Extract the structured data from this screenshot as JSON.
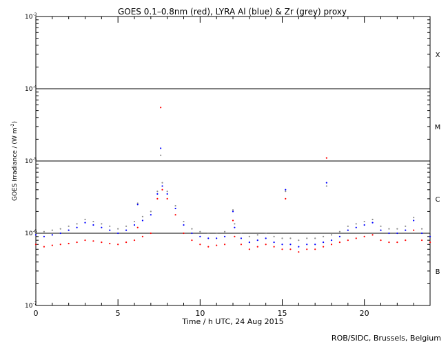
{
  "chart_data": {
    "type": "scatter",
    "title": "GOES 0.1–0.8nm (red), LYRA Al (blue) & Zr (grey) proxy",
    "xlabel": "Time / h UTC, 24 Aug 2015",
    "ylabel_text": "GOES Irradiance / (W m",
    "ylabel_sup": "-2",
    "ylabel_close": ")",
    "xlim": [
      0,
      24
    ],
    "ylim": [
      1e-07,
      0.001
    ],
    "yscale": "log",
    "x_ticks": [
      "0",
      "5",
      "10",
      "15",
      "20"
    ],
    "x_tick_values": [
      0,
      5,
      10,
      15,
      20
    ],
    "y_tick_values": [
      1e-07,
      1e-06,
      1e-05,
      0.0001,
      0.001
    ],
    "y_tick_labels": [
      {
        "base": "10",
        "exp": "-7"
      },
      {
        "base": "10",
        "exp": "-6"
      },
      {
        "base": "10",
        "exp": "-5"
      },
      {
        "base": "10",
        "exp": "-4"
      },
      {
        "base": "10",
        "exp": "-3"
      }
    ],
    "class_lines": [
      1e-06,
      1e-05,
      0.0001
    ],
    "class_labels": [
      {
        "label": "X",
        "value": 0.0003
      },
      {
        "label": "M",
        "value": 3e-05
      },
      {
        "label": "C",
        "value": 3e-06
      },
      {
        "label": "B",
        "value": 3e-07
      }
    ],
    "series": [
      {
        "name": "GOES 0.1–0.8nm",
        "color": "#ff0000",
        "x": [
          0,
          0.5,
          1,
          1.5,
          2,
          2.5,
          3,
          3.5,
          4,
          4.5,
          5,
          5.5,
          6,
          6.2,
          6.5,
          7,
          7.4,
          7.6,
          7.7,
          8,
          8.5,
          9,
          9.5,
          10,
          10.5,
          11,
          11.5,
          12,
          12.1,
          12.5,
          13,
          13.5,
          14,
          14.5,
          15,
          15.2,
          15.5,
          16,
          16.5,
          17,
          17.5,
          17.7,
          18,
          18.5,
          19,
          19.5,
          20,
          20.5,
          21,
          21.5,
          22,
          22.5,
          23,
          23.5,
          24
        ],
        "y": [
          7e-07,
          6.5e-07,
          6.8e-07,
          7e-07,
          7.2e-07,
          7.5e-07,
          8e-07,
          7.8e-07,
          7.5e-07,
          7.2e-07,
          7e-07,
          7.5e-07,
          8e-07,
          1.2e-06,
          9e-07,
          1e-06,
          3e-06,
          5.5e-05,
          4e-06,
          3e-06,
          1.8e-06,
          1e-06,
          8e-07,
          7e-07,
          6.5e-07,
          6.8e-07,
          7e-07,
          1.5e-06,
          9e-07,
          7e-07,
          6e-07,
          6.5e-07,
          7e-07,
          6.5e-07,
          6e-07,
          3e-06,
          6e-07,
          5.5e-07,
          6e-07,
          6e-07,
          6.5e-07,
          1.1e-05,
          7e-07,
          7.5e-07,
          8e-07,
          8.5e-07,
          9e-07,
          9.5e-07,
          8e-07,
          7.5e-07,
          7.5e-07,
          8e-07,
          1.1e-06,
          8e-07,
          7.5e-07
        ]
      },
      {
        "name": "LYRA Al",
        "color": "#0000ff",
        "x": [
          0,
          0.5,
          1,
          1.5,
          2,
          2.5,
          3,
          3.5,
          4,
          4.5,
          5,
          5.5,
          6,
          6.2,
          6.5,
          7,
          7.4,
          7.6,
          7.7,
          8,
          8.5,
          9,
          9.5,
          10,
          10.5,
          11,
          11.5,
          12,
          12.1,
          12.5,
          13,
          13.5,
          14,
          14.5,
          15,
          15.2,
          15.5,
          16,
          16.5,
          17,
          17.5,
          17.7,
          18,
          18.5,
          19,
          19.5,
          20,
          20.5,
          21,
          21.5,
          22,
          22.5,
          23,
          23.5,
          24
        ],
        "y": [
          9.5e-07,
          9e-07,
          9.5e-07,
          1e-06,
          1.1e-06,
          1.2e-06,
          1.4e-06,
          1.3e-06,
          1.2e-06,
          1.1e-06,
          1e-06,
          1.1e-06,
          1.3e-06,
          2.5e-06,
          1.5e-06,
          1.8e-06,
          3.5e-06,
          1.5e-05,
          4.5e-06,
          3.5e-06,
          2.2e-06,
          1.3e-06,
          1e-06,
          9e-07,
          8.5e-07,
          8.5e-07,
          9e-07,
          2e-06,
          1.2e-06,
          8.5e-07,
          7.5e-07,
          8e-07,
          8.5e-07,
          7.5e-07,
          7e-07,
          4e-06,
          7e-07,
          6.5e-07,
          7e-07,
          7e-07,
          7.5e-07,
          5e-06,
          8e-07,
          9e-07,
          1.1e-06,
          1.2e-06,
          1.3e-06,
          1.4e-06,
          1.1e-06,
          1e-06,
          1e-06,
          1.1e-06,
          1.5e-06,
          1e-06,
          9e-07
        ]
      },
      {
        "name": "Zr",
        "color": "#8c8c8c",
        "x": [
          0,
          0.5,
          1,
          1.5,
          2,
          2.5,
          3,
          3.5,
          4,
          4.5,
          5,
          5.5,
          6,
          6.2,
          6.5,
          7,
          7.4,
          7.6,
          7.7,
          8,
          8.5,
          9,
          9.5,
          10,
          10.5,
          11,
          11.5,
          12,
          12.1,
          12.5,
          13,
          13.5,
          14,
          14.5,
          15,
          15.2,
          15.5,
          16,
          16.5,
          17,
          17.5,
          17.7,
          18,
          18.5,
          19,
          19.5,
          20,
          20.5,
          21,
          21.5,
          22,
          22.5,
          23,
          23.5,
          24
        ],
        "y": [
          1.1e-06,
          1.05e-06,
          1.1e-06,
          1.15e-06,
          1.25e-06,
          1.35e-06,
          1.55e-06,
          1.45e-06,
          1.35e-06,
          1.25e-06,
          1.15e-06,
          1.25e-06,
          1.45e-06,
          2.6e-06,
          1.7e-06,
          2e-06,
          3.8e-06,
          1.2e-05,
          5e-06,
          3.8e-06,
          2.4e-06,
          1.45e-06,
          1.15e-06,
          1.05e-06,
          1e-06,
          1e-06,
          1.05e-06,
          2.1e-06,
          1.35e-06,
          1e-06,
          9e-07,
          9.5e-07,
          1e-06,
          9e-07,
          8.5e-07,
          3.8e-06,
          8.5e-07,
          8e-07,
          8.5e-07,
          8.5e-07,
          9e-07,
          4.5e-06,
          9.5e-07,
          1.05e-06,
          1.25e-06,
          1.35e-06,
          1.45e-06,
          1.55e-06,
          1.25e-06,
          1.15e-06,
          1.15e-06,
          1.25e-06,
          1.65e-06,
          1.15e-06,
          1.05e-06
        ]
      }
    ]
  },
  "credit": "ROB/SIDC, Brussels, Belgium"
}
